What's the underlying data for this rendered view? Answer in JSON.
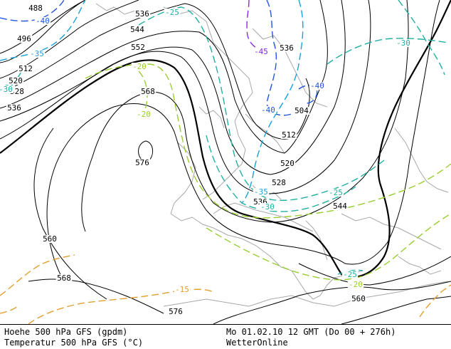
{
  "map": {
    "colors": {
      "height": "#000000",
      "t_minus45": "#8a2be2",
      "t_minus40": "#2255dd",
      "t_minus35": "#1aa0d8",
      "t_minus30": "#20b0a0",
      "t_minus25": "#20b0a0",
      "t_minus20": "#9acd32",
      "t_minus15": "#e0a030",
      "coast": "#a8a8a8"
    },
    "height_labels": [
      "488",
      "496",
      "512",
      "520",
      "528",
      "536",
      "536",
      "544",
      "552",
      "560",
      "568",
      "576",
      "568",
      "560",
      "544",
      "528",
      "520",
      "512",
      "504",
      "536",
      "536",
      "560",
      "576",
      "536"
    ],
    "temp_labels": [
      "-40",
      "-35",
      "-30",
      "-25",
      "-45",
      "-40",
      "-40",
      "-20",
      "-20",
      "-35",
      "-30",
      "-25",
      "-30",
      "-25",
      "-20",
      "-15",
      "-30"
    ]
  },
  "footer": {
    "line1_left": "Hoehe 500 hPa GFS (gpdm)",
    "line2_left": "Temperatur 500 hPa GFS (°C)",
    "line1_right": "Mo 01.02.10 12 GMT (Do 00 + 276h)",
    "line2_right": "WetterOnline"
  }
}
